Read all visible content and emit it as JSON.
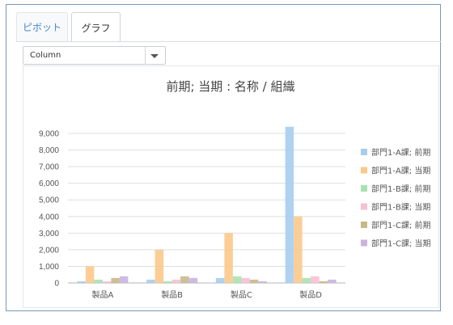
{
  "tabs": [
    {
      "label": "ピボット"
    },
    {
      "label": "グラフ"
    }
  ],
  "chart_type_select": {
    "value": "Column"
  },
  "colors": {
    "series": [
      "#a6cdf0",
      "#fcc98a",
      "#a9e2b0",
      "#f8bfd3",
      "#c8b98a",
      "#cab3e0"
    ]
  },
  "chart_data": {
    "type": "bar",
    "title": "前期; 当期 : 名称 / 組織",
    "categories": [
      "製品A",
      "製品B",
      "製品C",
      "製品D"
    ],
    "ylim": [
      0,
      9000
    ],
    "yticks": [
      "0",
      "1,000",
      "2,000",
      "3,000",
      "4,000",
      "5,000",
      "6,000",
      "7,000",
      "8,000",
      "9,000"
    ],
    "grid": true,
    "legend_position": "right",
    "series": [
      {
        "name": "部門1-A課; 前期",
        "values": [
          100,
          200,
          300,
          9400
        ]
      },
      {
        "name": "部門1-A課; 当期",
        "values": [
          1000,
          2000,
          3000,
          4000
        ]
      },
      {
        "name": "部門1-B課; 前期",
        "values": [
          200,
          100,
          400,
          300
        ]
      },
      {
        "name": "部門1-B課; 当期",
        "values": [
          100,
          200,
          300,
          400
        ]
      },
      {
        "name": "部門1-C課; 前期",
        "values": [
          300,
          400,
          200,
          100
        ]
      },
      {
        "name": "部門1-C課; 当期",
        "values": [
          400,
          300,
          100,
          200
        ]
      }
    ]
  }
}
